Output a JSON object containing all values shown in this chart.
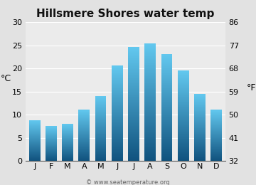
{
  "title": "Hillsmere Shores water temp",
  "months": [
    "J",
    "F",
    "M",
    "A",
    "M",
    "J",
    "J",
    "A",
    "S",
    "O",
    "N",
    "D"
  ],
  "values_c": [
    8.8,
    7.5,
    8.0,
    11.1,
    14.0,
    20.6,
    24.6,
    25.4,
    23.1,
    19.5,
    14.5,
    11.1
  ],
  "ylim_c": [
    0,
    30
  ],
  "yticks_c": [
    0,
    5,
    10,
    15,
    20,
    25,
    30
  ],
  "yticks_f": [
    32,
    41,
    50,
    59,
    68,
    77,
    86
  ],
  "ylabel_left": "°C",
  "ylabel_right": "°F",
  "bar_color_top": "#62c8ef",
  "bar_color_bottom": "#10527e",
  "background_color": "#e2e2e2",
  "plot_bg_color": "#ebebeb",
  "title_fontsize": 11,
  "tick_fontsize": 8,
  "label_fontsize": 9,
  "watermark": "© www.seatemperature.org"
}
